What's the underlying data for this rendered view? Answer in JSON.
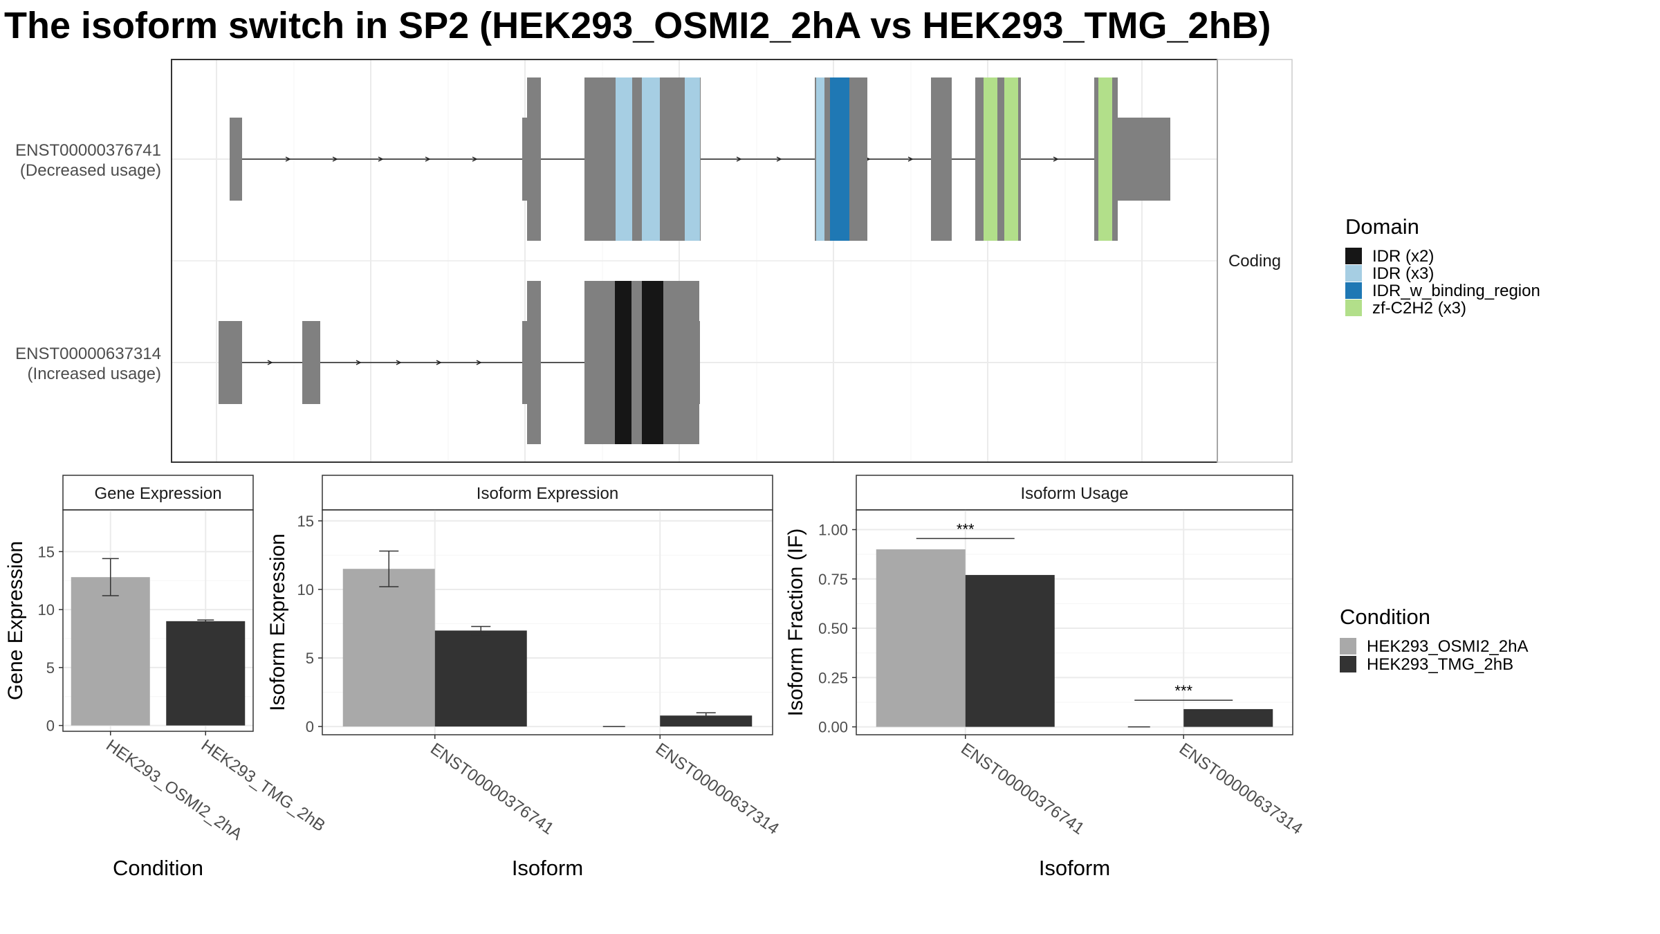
{
  "title": "The isoform switch in SP2 (HEK293_OSMI2_2hA vs HEK293_TMG_2hB)",
  "chart_data": [
    {
      "type": "gene-structure",
      "facet_label": "Coding",
      "transcripts": [
        {
          "id": "ENST00000376741",
          "usage": "(Decreased usage)"
        },
        {
          "id": "ENST00000637314",
          "usage": "(Increased usage)"
        }
      ],
      "legend_title": "Domain",
      "domains": [
        {
          "name": "IDR (x2)",
          "color": "#161616"
        },
        {
          "name": "IDR (x3)",
          "color": "#a6cee3"
        },
        {
          "name": "IDR_w_binding_region",
          "color": "#1f78b4"
        },
        {
          "name": "zf-C2H2 (x3)",
          "color": "#b2df8a"
        }
      ]
    },
    {
      "type": "bar",
      "panel_title": "Gene Expression",
      "ylabel": "Gene Expression",
      "xlabel": "Condition",
      "categories": [
        "HEK293_OSMI2_2hA",
        "HEK293_TMG_2hB"
      ],
      "values": [
        12.8,
        9.0
      ],
      "error": [
        [
          11.2,
          14.4
        ],
        [
          8.9,
          9.1
        ]
      ],
      "ylim": [
        -0.5,
        18.6
      ],
      "yticks": [
        0,
        5,
        10,
        15
      ],
      "grid": true
    },
    {
      "type": "bar",
      "panel_title": "Isoform Expression",
      "ylabel": "Isoform Expression",
      "xlabel": "Isoform",
      "categories": [
        "ENST00000376741",
        "ENST00000637314"
      ],
      "series": [
        {
          "name": "HEK293_OSMI2_2hA",
          "values": [
            11.5,
            0.0
          ],
          "error": [
            [
              10.2,
              12.8
            ],
            [
              0.0,
              0.0
            ]
          ]
        },
        {
          "name": "HEK293_TMG_2hB",
          "values": [
            7.0,
            0.8
          ],
          "error": [
            [
              6.7,
              7.3
            ],
            [
              0.6,
              1.0
            ]
          ]
        }
      ],
      "ylim": [
        -0.6,
        15.8
      ],
      "yticks": [
        0,
        5,
        10,
        15
      ],
      "grid": true
    },
    {
      "type": "bar",
      "panel_title": "Isoform Usage",
      "ylabel": "Isoform Fraction (IF)",
      "xlabel": "Isoform",
      "categories": [
        "ENST00000376741",
        "ENST00000637314"
      ],
      "series": [
        {
          "name": "HEK293_OSMI2_2hA",
          "values": [
            0.9,
            0.0
          ]
        },
        {
          "name": "HEK293_TMG_2hB",
          "values": [
            0.77,
            0.09
          ]
        }
      ],
      "significance": [
        {
          "label": "***",
          "y": 0.955
        },
        {
          "label": "***",
          "y": 0.135
        }
      ],
      "ylim": [
        -0.04,
        1.1
      ],
      "yticks": [
        0,
        0.25,
        0.5,
        0.75,
        1.0
      ],
      "ytick_labels": [
        "0.00",
        "0.25",
        "0.50",
        "0.75",
        "1.00"
      ],
      "grid": true
    }
  ],
  "condition_legend": {
    "title": "Condition",
    "entries": [
      {
        "name": "HEK293_OSMI2_2hA",
        "color": "#a9a9a9"
      },
      {
        "name": "HEK293_TMG_2hB",
        "color": "#333333"
      }
    ]
  },
  "colors": {
    "exon": "#808080",
    "panel_border": "#333333",
    "grid": "#ebebeb"
  }
}
